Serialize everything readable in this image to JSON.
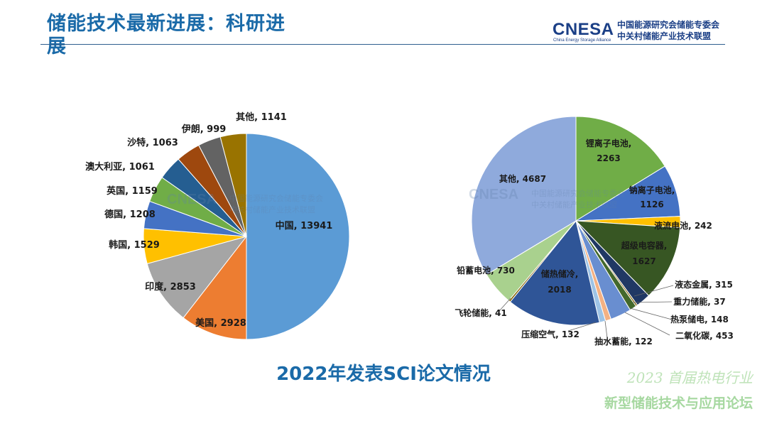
{
  "header": {
    "title": "储能技术最新进展：科研进展",
    "logo": {
      "mark": "CNESA",
      "sub": "China Energy Storage Alliance",
      "line1": "中国能源研究会储能专委会",
      "line2": "中关村储能产业技术联盟"
    }
  },
  "caption": "2022年发表SCI论文情况",
  "event": {
    "line1": "2023 首届热电行业",
    "line2": "新型储能技术与应用论坛"
  },
  "watermark": {
    "mark": "CNESA",
    "line1": "中国能源研究会储能专委会",
    "line2": "中关村储能产业技术联盟"
  },
  "colors": {
    "title": "#1a6aa8",
    "rule": "#2f5f8f"
  },
  "chart_data": [
    {
      "type": "pie",
      "title": "",
      "slices": [
        {
          "label": "中国",
          "value": 13941,
          "color": "#5b9bd5"
        },
        {
          "label": "美国",
          "value": 2928,
          "color": "#ed7d31"
        },
        {
          "label": "印度",
          "value": 2853,
          "color": "#a5a5a5"
        },
        {
          "label": "韩国",
          "value": 1529,
          "color": "#ffc000"
        },
        {
          "label": "德国",
          "value": 1208,
          "color": "#4472c4"
        },
        {
          "label": "英国",
          "value": 1159,
          "color": "#70ad47"
        },
        {
          "label": "澳大利亚",
          "value": 1061,
          "color": "#255e91"
        },
        {
          "label": "沙特",
          "value": 1063,
          "color": "#9e480e"
        },
        {
          "label": "伊朗",
          "value": 999,
          "color": "#636363"
        },
        {
          "label": "其他",
          "value": 1141,
          "color": "#997300"
        }
      ],
      "start": "top",
      "direction": "clockwise",
      "data_labels": "outside"
    },
    {
      "type": "pie",
      "title": "",
      "slices": [
        {
          "label": "锂离子电池",
          "value": 2263,
          "color": "#70ad47"
        },
        {
          "label": "钠离子电池",
          "value": 1126,
          "color": "#4472c4"
        },
        {
          "label": "液流电池",
          "value": 242,
          "color": "#ffc000"
        },
        {
          "label": "超级电容器",
          "value": 1627,
          "color": "#375623"
        },
        {
          "label": "液态金属",
          "value": 315,
          "color": "#203864"
        },
        {
          "label": "重力储能",
          "value": 37,
          "color": "#7f6000"
        },
        {
          "label": "热泵储电",
          "value": 148,
          "color": "#43682b"
        },
        {
          "label": "二氧化碳",
          "value": 453,
          "color": "#698ed0"
        },
        {
          "label": "抽水蓄能",
          "value": 122,
          "color": "#f4b183"
        },
        {
          "label": "压缩空气",
          "value": 132,
          "color": "#9dc3e6"
        },
        {
          "label": "储热储冷",
          "value": 2018,
          "color": "#2f5597"
        },
        {
          "label": "飞轮储能",
          "value": 41,
          "color": "#806000"
        },
        {
          "label": "铅蓄电池",
          "value": 730,
          "color": "#a9d18e"
        },
        {
          "label": "其他",
          "value": 4687,
          "color": "#8faadc"
        }
      ],
      "start": "top",
      "direction": "clockwise",
      "data_labels": "mixed"
    }
  ]
}
